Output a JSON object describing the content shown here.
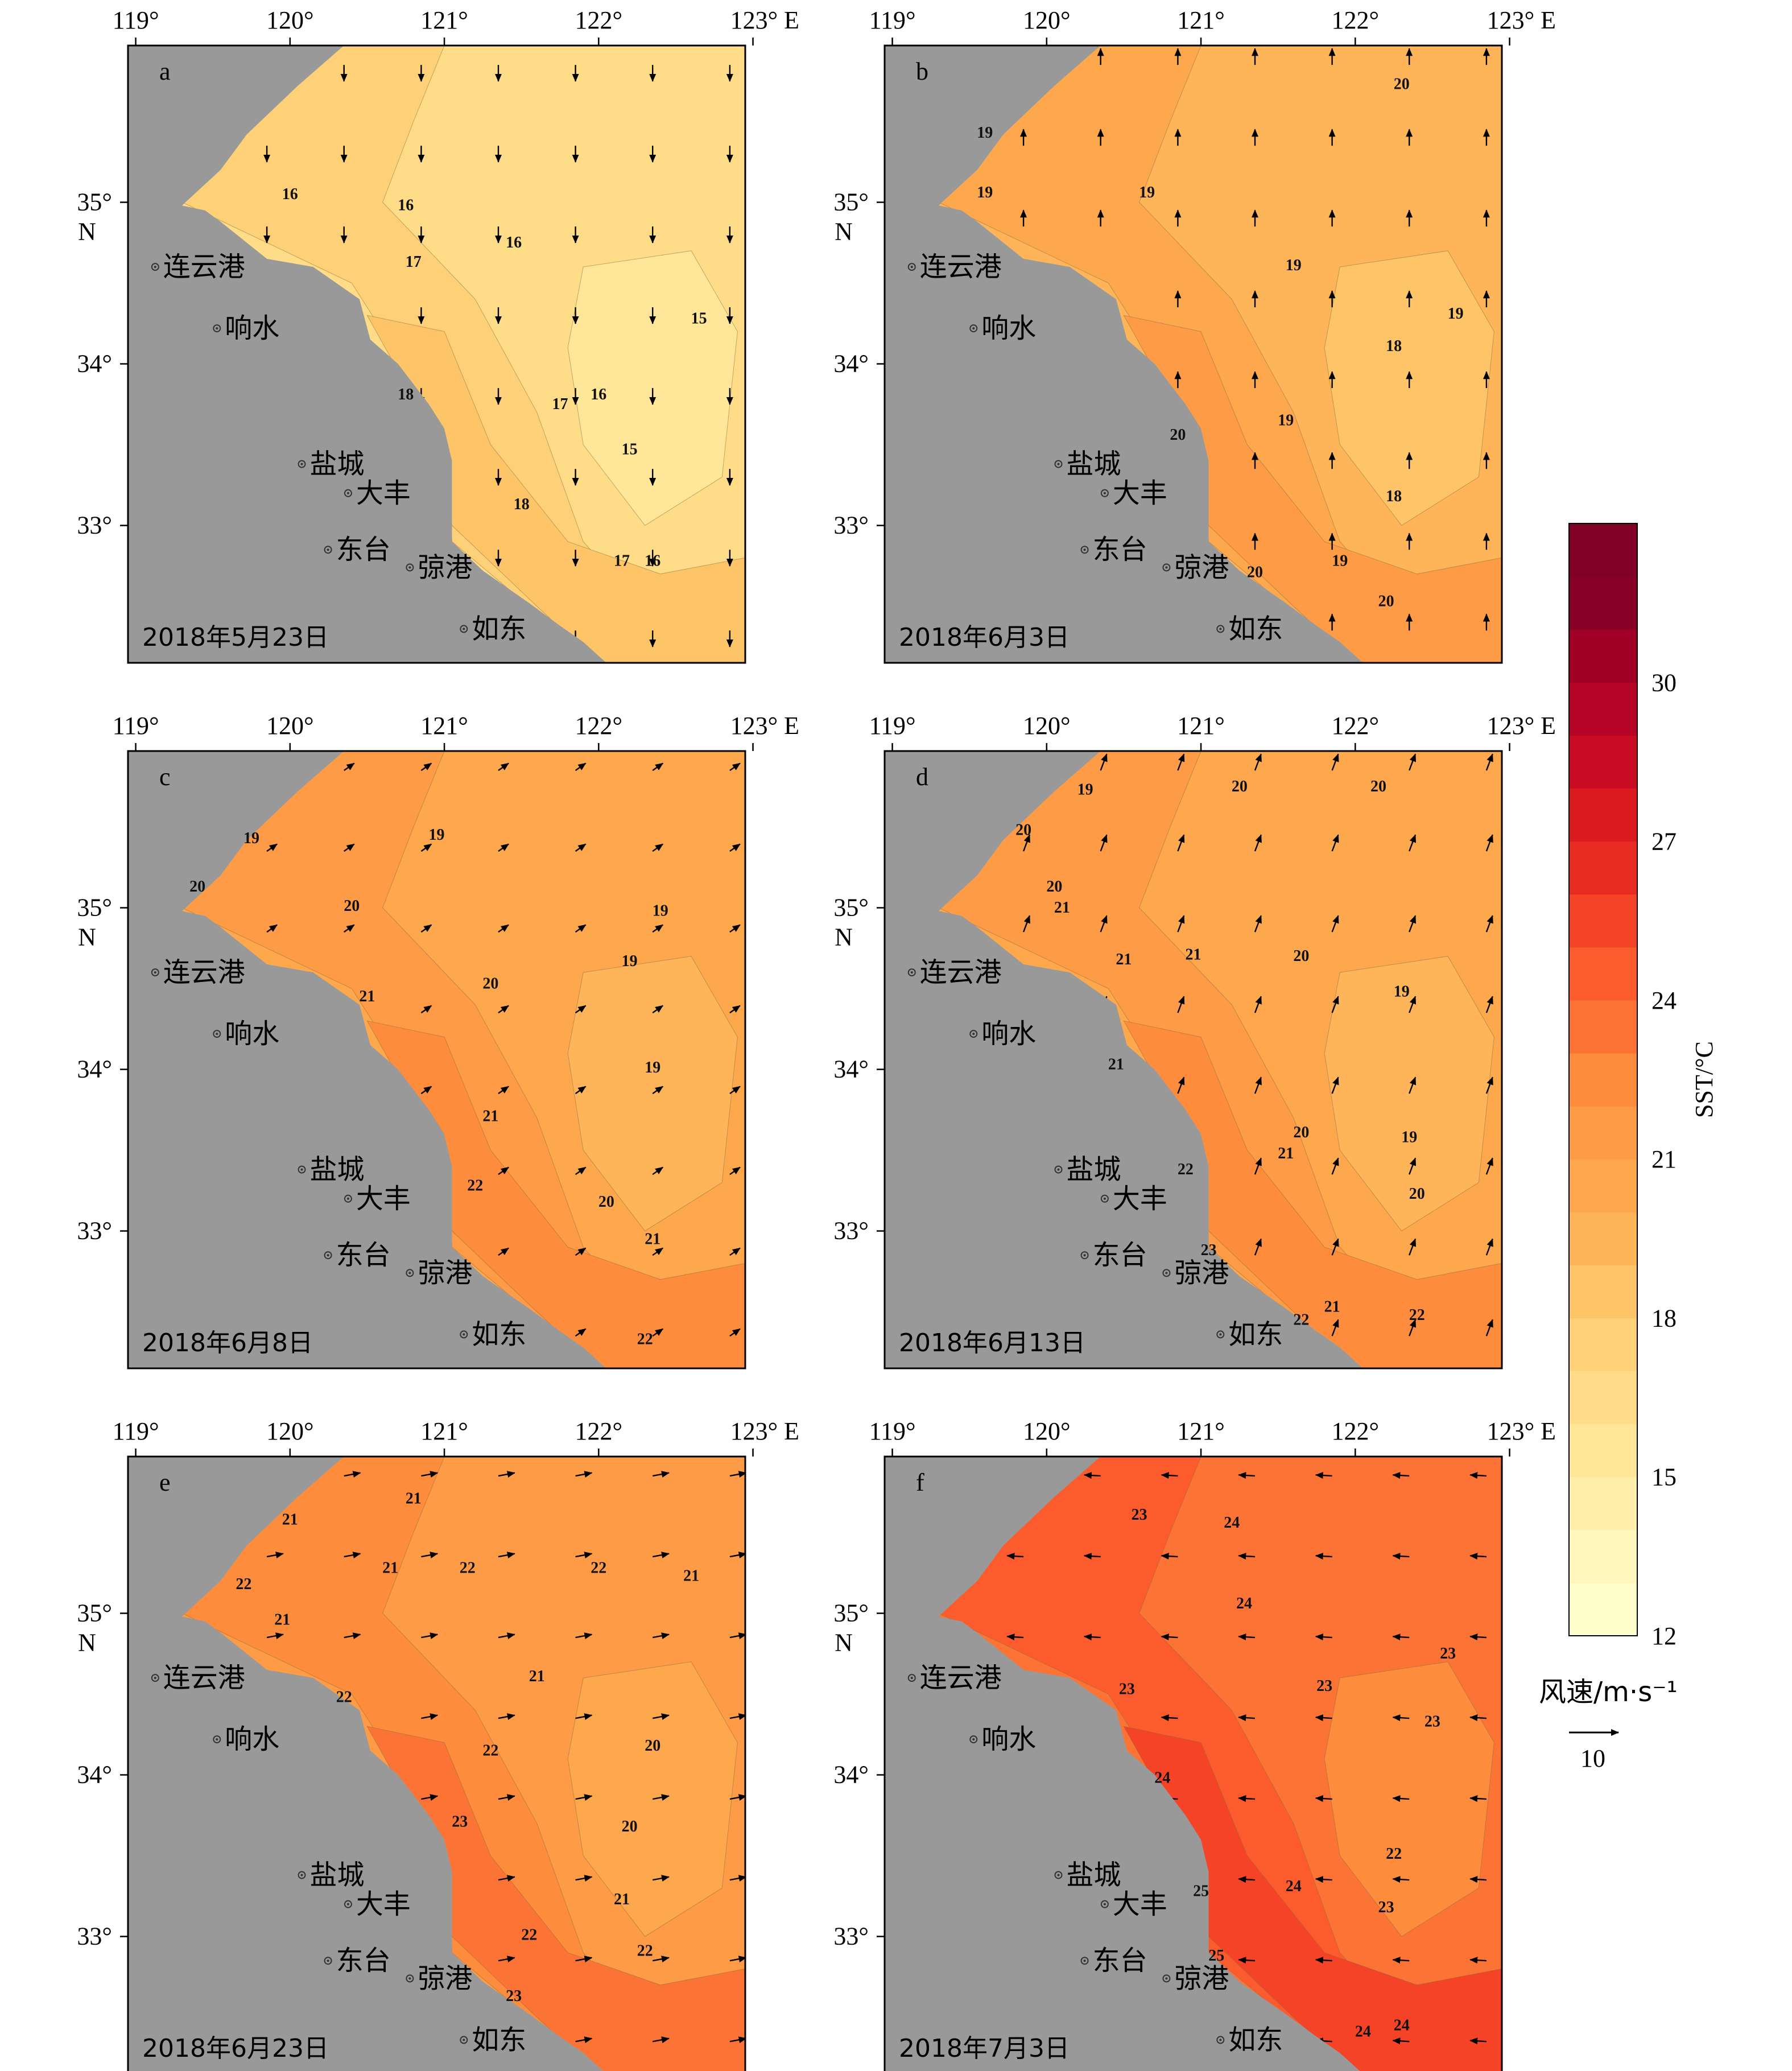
{
  "figure": {
    "colorbar": {
      "label": "SST/°C",
      "ticks": [
        "12",
        "15",
        "18",
        "21",
        "24",
        "27",
        "30"
      ],
      "min": 12,
      "max": 33,
      "step": 1,
      "colors": [
        "#ffffcc",
        "#fff7bb",
        "#ffefaa",
        "#ffe699",
        "#fedc88",
        "#fed077",
        "#fec468",
        "#feb55a",
        "#fea84e",
        "#fd9b46",
        "#fd8d3c",
        "#fc7435",
        "#fc5b2e",
        "#f44327",
        "#e82b22",
        "#da1a1e",
        "#c90c23",
        "#b60426",
        "#a00026",
        "#870026",
        "#800026"
      ],
      "wind_legend_label": "风速/m·s⁻¹",
      "wind_legend_value": "10"
    },
    "axes": {
      "lon_ticks": [
        "119°",
        "120°",
        "121°",
        "122°",
        "123° E"
      ],
      "lat_ticks": [
        "35°",
        "34°",
        "33°"
      ],
      "lat_suffix": "N"
    },
    "cities": [
      {
        "name": "连云港",
        "lon": 119.2,
        "lat": 34.6
      },
      {
        "name": "响水",
        "lon": 119.6,
        "lat": 34.22
      },
      {
        "name": "盐城",
        "lon": 120.15,
        "lat": 33.38
      },
      {
        "name": "大丰",
        "lon": 120.45,
        "lat": 33.2
      },
      {
        "name": "东台",
        "lon": 120.32,
        "lat": 32.85
      },
      {
        "name": "弶港",
        "lon": 120.85,
        "lat": 32.74
      },
      {
        "name": "如东",
        "lon": 121.2,
        "lat": 32.36
      }
    ]
  },
  "panels": [
    {
      "letter": "a",
      "date": "2018年5月23日",
      "base": 16,
      "wind": {
        "u": 0,
        "v": -0.8
      },
      "labels": [
        {
          "t": "16",
          "lon": 120.0,
          "lat": 35.02
        },
        {
          "t": "16",
          "lon": 120.75,
          "lat": 34.95
        },
        {
          "t": "16",
          "lon": 121.45,
          "lat": 34.72
        },
        {
          "t": "17",
          "lon": 120.8,
          "lat": 34.6
        },
        {
          "t": "15",
          "lon": 122.65,
          "lat": 34.25
        },
        {
          "t": "18",
          "lon": 120.75,
          "lat": 33.78
        },
        {
          "t": "17",
          "lon": 121.75,
          "lat": 33.72
        },
        {
          "t": "16",
          "lon": 122.0,
          "lat": 33.78
        },
        {
          "t": "15",
          "lon": 122.2,
          "lat": 33.44
        },
        {
          "t": "18",
          "lon": 121.5,
          "lat": 33.1
        },
        {
          "t": "17",
          "lon": 122.15,
          "lat": 32.75
        },
        {
          "t": "16",
          "lon": 122.35,
          "lat": 32.75
        }
      ]
    },
    {
      "letter": "b",
      "date": "2018年6月3日",
      "base": 19,
      "wind": {
        "u": 0,
        "v": 0.8
      },
      "labels": [
        {
          "t": "19",
          "lon": 119.6,
          "lat": 35.4
        },
        {
          "t": "19",
          "lon": 119.6,
          "lat": 35.03
        },
        {
          "t": "19",
          "lon": 120.65,
          "lat": 35.03
        },
        {
          "t": "20",
          "lon": 122.3,
          "lat": 35.7
        },
        {
          "t": "19",
          "lon": 121.6,
          "lat": 34.58
        },
        {
          "t": "19",
          "lon": 122.65,
          "lat": 34.28
        },
        {
          "t": "18",
          "lon": 122.25,
          "lat": 34.08
        },
        {
          "t": "19",
          "lon": 121.55,
          "lat": 33.62
        },
        {
          "t": "20",
          "lon": 120.85,
          "lat": 33.53
        },
        {
          "t": "18",
          "lon": 122.25,
          "lat": 33.15
        },
        {
          "t": "19",
          "lon": 121.9,
          "lat": 32.75
        },
        {
          "t": "20",
          "lon": 121.35,
          "lat": 32.68
        },
        {
          "t": "20",
          "lon": 122.2,
          "lat": 32.5
        }
      ]
    },
    {
      "letter": "c",
      "date": "2018年6月8日",
      "base": 20,
      "wind": {
        "u": 0.5,
        "v": 0.35
      },
      "labels": [
        {
          "t": "19",
          "lon": 119.75,
          "lat": 35.4
        },
        {
          "t": "19",
          "lon": 120.95,
          "lat": 35.42
        },
        {
          "t": "20",
          "lon": 119.4,
          "lat": 35.1
        },
        {
          "t": "20",
          "lon": 120.4,
          "lat": 34.98
        },
        {
          "t": "19",
          "lon": 122.4,
          "lat": 34.95
        },
        {
          "t": "19",
          "lon": 122.2,
          "lat": 34.64
        },
        {
          "t": "20",
          "lon": 121.3,
          "lat": 34.5
        },
        {
          "t": "21",
          "lon": 120.5,
          "lat": 34.42
        },
        {
          "t": "19",
          "lon": 122.35,
          "lat": 33.98
        },
        {
          "t": "21",
          "lon": 121.3,
          "lat": 33.68
        },
        {
          "t": "22",
          "lon": 121.2,
          "lat": 33.25
        },
        {
          "t": "20",
          "lon": 122.05,
          "lat": 33.15
        },
        {
          "t": "21",
          "lon": 122.35,
          "lat": 32.92
        },
        {
          "t": "22",
          "lon": 122.3,
          "lat": 32.3
        }
      ]
    },
    {
      "letter": "d",
      "date": "2018年6月13日",
      "base": 20,
      "wind": {
        "u": 0.3,
        "v": 0.8
      },
      "labels": [
        {
          "t": "19",
          "lon": 120.25,
          "lat": 35.7
        },
        {
          "t": "20",
          "lon": 121.25,
          "lat": 35.72
        },
        {
          "t": "20",
          "lon": 122.15,
          "lat": 35.72
        },
        {
          "t": "20",
          "lon": 119.85,
          "lat": 35.45
        },
        {
          "t": "20",
          "lon": 120.05,
          "lat": 35.1
        },
        {
          "t": "21",
          "lon": 120.1,
          "lat": 34.97
        },
        {
          "t": "21",
          "lon": 120.5,
          "lat": 34.65
        },
        {
          "t": "21",
          "lon": 120.95,
          "lat": 34.68
        },
        {
          "t": "20",
          "lon": 121.65,
          "lat": 34.67
        },
        {
          "t": "19",
          "lon": 122.3,
          "lat": 34.45
        },
        {
          "t": "21",
          "lon": 120.45,
          "lat": 34.0
        },
        {
          "t": "20",
          "lon": 121.65,
          "lat": 33.58
        },
        {
          "t": "21",
          "lon": 121.55,
          "lat": 33.45
        },
        {
          "t": "19",
          "lon": 122.35,
          "lat": 33.55
        },
        {
          "t": "22",
          "lon": 120.9,
          "lat": 33.35
        },
        {
          "t": "20",
          "lon": 122.4,
          "lat": 33.2
        },
        {
          "t": "23",
          "lon": 121.05,
          "lat": 32.85
        },
        {
          "t": "21",
          "lon": 121.85,
          "lat": 32.5
        },
        {
          "t": "22",
          "lon": 121.65,
          "lat": 32.42
        },
        {
          "t": "22",
          "lon": 122.4,
          "lat": 32.45
        }
      ]
    },
    {
      "letter": "e",
      "date": "2018年6月23日",
      "base": 21,
      "wind": {
        "u": 0.8,
        "v": 0.15
      },
      "labels": [
        {
          "t": "21",
          "lon": 120.8,
          "lat": 35.68
        },
        {
          "t": "21",
          "lon": 120.0,
          "lat": 35.55
        },
        {
          "t": "22",
          "lon": 119.7,
          "lat": 35.15
        },
        {
          "t": "21",
          "lon": 120.65,
          "lat": 35.25
        },
        {
          "t": "22",
          "lon": 121.15,
          "lat": 35.25
        },
        {
          "t": "22",
          "lon": 122.0,
          "lat": 35.25
        },
        {
          "t": "21",
          "lon": 122.6,
          "lat": 35.2
        },
        {
          "t": "21",
          "lon": 119.95,
          "lat": 34.93
        },
        {
          "t": "22",
          "lon": 120.35,
          "lat": 34.45
        },
        {
          "t": "21",
          "lon": 121.6,
          "lat": 34.58
        },
        {
          "t": "20",
          "lon": 122.35,
          "lat": 34.15
        },
        {
          "t": "22",
          "lon": 121.3,
          "lat": 34.12
        },
        {
          "t": "23",
          "lon": 121.1,
          "lat": 33.68
        },
        {
          "t": "20",
          "lon": 122.2,
          "lat": 33.65
        },
        {
          "t": "21",
          "lon": 122.15,
          "lat": 33.2
        },
        {
          "t": "22",
          "lon": 121.55,
          "lat": 32.98
        },
        {
          "t": "22",
          "lon": 122.3,
          "lat": 32.88
        },
        {
          "t": "23",
          "lon": 121.45,
          "lat": 32.6
        }
      ]
    },
    {
      "letter": "f",
      "date": "2018年7月3日",
      "base": 23,
      "wind": {
        "u": -0.8,
        "v": 0.05
      },
      "labels": [
        {
          "t": "23",
          "lon": 120.6,
          "lat": 35.58
        },
        {
          "t": "24",
          "lon": 121.2,
          "lat": 35.53
        },
        {
          "t": "24",
          "lon": 121.28,
          "lat": 35.03
        },
        {
          "t": "23",
          "lon": 122.6,
          "lat": 34.72
        },
        {
          "t": "23",
          "lon": 120.52,
          "lat": 34.5
        },
        {
          "t": "23",
          "lon": 121.8,
          "lat": 34.52
        },
        {
          "t": "23",
          "lon": 122.5,
          "lat": 34.3
        },
        {
          "t": "24",
          "lon": 120.75,
          "lat": 33.95
        },
        {
          "t": "22",
          "lon": 122.25,
          "lat": 33.48
        },
        {
          "t": "24",
          "lon": 121.6,
          "lat": 33.28
        },
        {
          "t": "25",
          "lon": 121.0,
          "lat": 33.25
        },
        {
          "t": "23",
          "lon": 122.2,
          "lat": 33.15
        },
        {
          "t": "25",
          "lon": 121.1,
          "lat": 32.85
        },
        {
          "t": "24",
          "lon": 122.05,
          "lat": 32.38
        },
        {
          "t": "24",
          "lon": 122.3,
          "lat": 32.42
        }
      ]
    }
  ]
}
